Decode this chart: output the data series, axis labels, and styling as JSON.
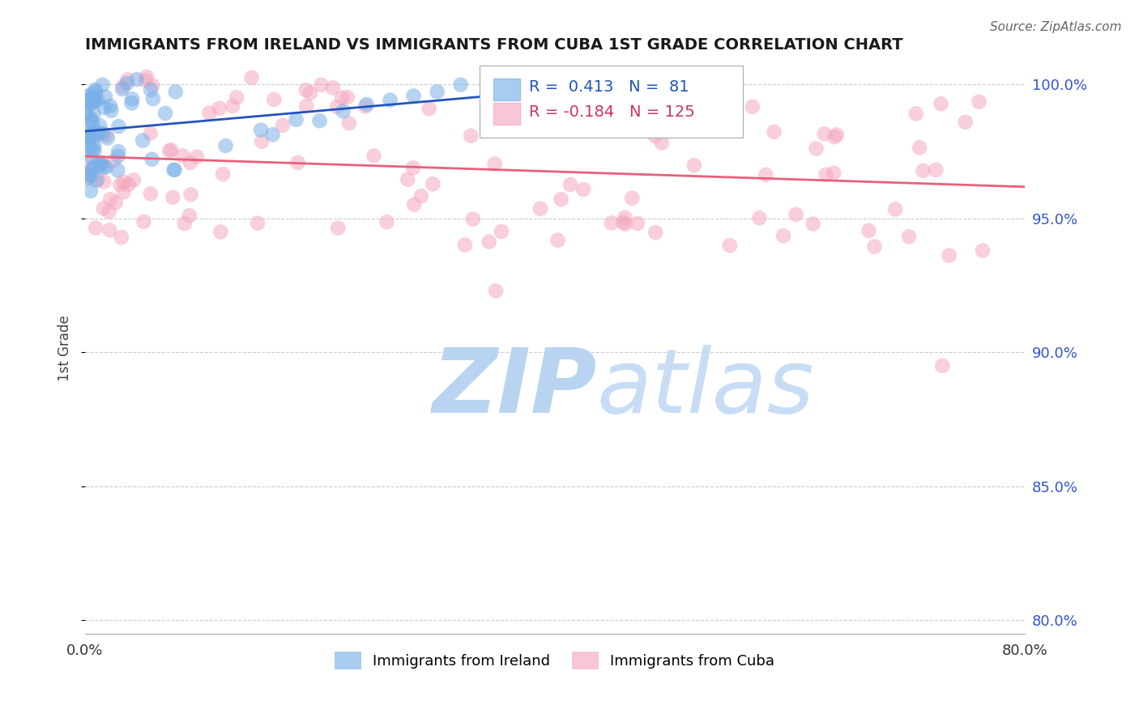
{
  "title": "IMMIGRANTS FROM IRELAND VS IMMIGRANTS FROM CUBA 1ST GRADE CORRELATION CHART",
  "source_text": "Source: ZipAtlas.com",
  "ylabel": "1st Grade",
  "xlim": [
    0.0,
    0.8
  ],
  "ylim": [
    0.795,
    1.008
  ],
  "xticks": [
    0.0,
    0.1,
    0.2,
    0.3,
    0.4,
    0.5,
    0.6,
    0.7,
    0.8
  ],
  "xticklabels": [
    "0.0%",
    "",
    "",
    "",
    "",
    "",
    "",
    "",
    "80.0%"
  ],
  "yticks": [
    0.8,
    0.85,
    0.9,
    0.95,
    1.0
  ],
  "yticklabels": [
    "80.0%",
    "85.0%",
    "90.0%",
    "95.0%",
    "100.0%"
  ],
  "ireland_R": 0.413,
  "ireland_N": 81,
  "cuba_R": -0.184,
  "cuba_N": 125,
  "ireland_color": "#7ab0e8",
  "cuba_color": "#f5a8be",
  "ireland_line_color": "#2255bb",
  "cuba_line_color": "#e8607a",
  "legend_ireland_label": "Immigrants from Ireland",
  "legend_cuba_label": "Immigrants from Cuba",
  "watermark_zip": "ZIP",
  "watermark_atlas": "atlas",
  "watermark_color_zip": "#b8d4f0",
  "watermark_color_atlas": "#c8ddf5",
  "grid_color": "#cccccc",
  "title_color": "#1a1a1a",
  "tick_label_color_right": "#3355cc",
  "background_color": "#ffffff"
}
